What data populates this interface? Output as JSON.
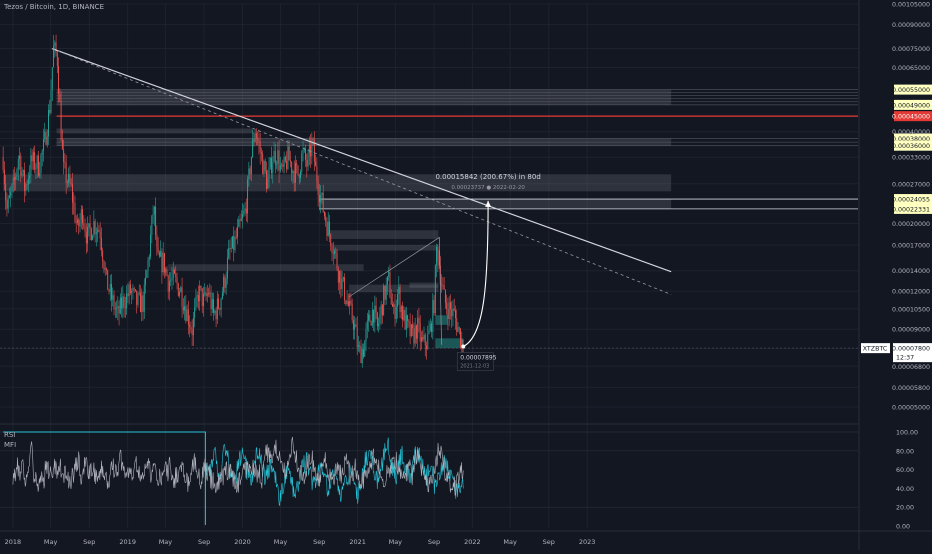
{
  "header": {
    "title": "Tezos / Bitcoin, 1D, BINANCE"
  },
  "colors": {
    "background": "#131722",
    "grid": "#1e222d",
    "up": "#26a69a",
    "down": "#ef5350",
    "rsi": "#b2b5be",
    "mfi": "#26c6da",
    "current_price_bg": "#ffffff",
    "highlight_bg": "#ffffc0",
    "red_level": "#e53935"
  },
  "chart_data": [
    {
      "type": "candlestick",
      "title": "Tezos / Bitcoin, 1D, BINANCE",
      "symbol": "XTZBTC",
      "yscale": "log",
      "ylim": [
        4e-05,
        0.00105
      ],
      "y_ticks": [
        "0.00105000",
        "0.00090000",
        "0.00075000",
        "0.00065000",
        "0.00055000",
        "0.00049000",
        "0.00045000",
        "0.00040000",
        "0.00038000",
        "0.00036000",
        "0.00033000",
        "0.00027000",
        "0.00024055",
        "0.00022331",
        "0.00020000",
        "0.00017000",
        "0.00014000",
        "0.00012000",
        "0.00010500",
        "0.00009000",
        "0.00007800",
        "0.00006800",
        "0.00005800",
        "0.00005000"
      ],
      "highlighted_ticks": [
        "0.00055000",
        "0.00049000",
        "0.00038000",
        "0.00036000",
        "0.00024055",
        "0.00022331"
      ],
      "red_tick": "0.00045000",
      "x_ticks": [
        "2018",
        "May",
        "Sep",
        "2019",
        "May",
        "Sep",
        "2020",
        "May",
        "Sep",
        "2021",
        "May",
        "Sep",
        "2022",
        "May",
        "Sep",
        "2023"
      ],
      "current_price": {
        "label": "XTZBTC",
        "value": "0.00007800",
        "countdown": "12:37"
      },
      "low_label": {
        "value": "0.00007895",
        "date": "2021-12-03"
      },
      "projection": {
        "text": "0.00015842 (200.67%) in 80d",
        "target": "0.00023737",
        "date": "2022-02-20"
      },
      "price_path": [
        [
          "2017-12-01",
          0.00033
        ],
        [
          "2017-12-12",
          0.00022
        ],
        [
          "2018-01-05",
          0.00027
        ],
        [
          "2018-01-20",
          0.00034
        ],
        [
          "2018-02-08",
          0.00026
        ],
        [
          "2018-03-01",
          0.00032
        ],
        [
          "2018-03-25",
          0.00031
        ],
        [
          "2018-04-10",
          0.00036
        ],
        [
          "2018-04-28",
          0.00048
        ],
        [
          "2018-05-10",
          0.00075
        ],
        [
          "2018-05-22",
          0.0007
        ],
        [
          "2018-06-10",
          0.0003
        ],
        [
          "2018-07-05",
          0.00026
        ],
        [
          "2018-07-25",
          0.00019
        ],
        [
          "2018-08-10",
          0.00022
        ],
        [
          "2018-08-25",
          0.00018
        ],
        [
          "2018-09-15",
          0.0002
        ],
        [
          "2018-10-05",
          0.00019
        ],
        [
          "2018-10-25",
          0.00013
        ],
        [
          "2018-11-15",
          0.00011
        ],
        [
          "2018-12-01",
          0.0001
        ],
        [
          "2018-12-15",
          0.00011
        ],
        [
          "2019-01-10",
          0.00012
        ],
        [
          "2019-01-30",
          0.00011
        ],
        [
          "2019-02-20",
          0.00011
        ],
        [
          "2019-03-10",
          0.00016
        ],
        [
          "2019-03-25",
          0.00023
        ],
        [
          "2019-04-05",
          0.00015
        ],
        [
          "2019-04-25",
          0.00015
        ],
        [
          "2019-05-10",
          0.00013
        ],
        [
          "2019-05-30",
          0.00013
        ],
        [
          "2019-06-20",
          0.00012
        ],
        [
          "2019-07-05",
          0.000105
        ],
        [
          "2019-07-25",
          9e-05
        ],
        [
          "2019-08-15",
          0.00012
        ],
        [
          "2019-09-01",
          0.00011
        ],
        [
          "2019-09-15",
          0.00012
        ],
        [
          "2019-10-01",
          0.0001
        ],
        [
          "2019-10-20",
          0.00011
        ],
        [
          "2019-11-05",
          0.00013
        ],
        [
          "2019-11-20",
          0.00016
        ],
        [
          "2019-12-05",
          0.00017
        ],
        [
          "2019-12-20",
          0.00019
        ],
        [
          "2020-01-10",
          0.00022
        ],
        [
          "2020-01-30",
          0.00034
        ],
        [
          "2020-02-10",
          0.00041
        ],
        [
          "2020-02-25",
          0.00035
        ],
        [
          "2020-03-10",
          0.0003
        ],
        [
          "2020-03-20",
          0.00027
        ],
        [
          "2020-04-05",
          0.00033
        ],
        [
          "2020-04-20",
          0.00034
        ],
        [
          "2020-05-05",
          0.00029
        ],
        [
          "2020-05-25",
          0.00033
        ],
        [
          "2020-06-10",
          0.0003
        ],
        [
          "2020-06-25",
          0.00029
        ],
        [
          "2020-07-10",
          0.00034
        ],
        [
          "2020-07-25",
          0.00031
        ],
        [
          "2020-08-10",
          0.00037
        ],
        [
          "2020-08-20",
          0.0003
        ],
        [
          "2020-09-01",
          0.00026
        ],
        [
          "2020-09-15",
          0.00022
        ],
        [
          "2020-10-01",
          0.00019
        ],
        [
          "2020-10-15",
          0.00017
        ],
        [
          "2020-11-01",
          0.00014
        ],
        [
          "2020-11-20",
          0.00012
        ],
        [
          "2020-12-05",
          0.000105
        ],
        [
          "2020-12-20",
          9.5e-05
        ],
        [
          "2021-01-05",
          7.5e-05
        ],
        [
          "2021-01-20",
          7.8e-05
        ],
        [
          "2021-02-05",
          9.5e-05
        ],
        [
          "2021-02-20",
          0.000105
        ],
        [
          "2021-03-05",
          9e-05
        ],
        [
          "2021-03-25",
          0.000115
        ],
        [
          "2021-04-10",
          0.00013
        ],
        [
          "2021-04-25",
          0.0001
        ],
        [
          "2021-05-10",
          0.00012
        ],
        [
          "2021-05-25",
          0.0001
        ],
        [
          "2021-06-10",
          9e-05
        ],
        [
          "2021-06-25",
          8.5e-05
        ],
        [
          "2021-07-10",
          9.2e-05
        ],
        [
          "2021-07-25",
          8e-05
        ],
        [
          "2021-08-10",
          8.2e-05
        ],
        [
          "2021-08-20",
          9e-05
        ],
        [
          "2021-09-01",
          0.00011
        ],
        [
          "2021-09-10",
          0.00017
        ],
        [
          "2021-09-20",
          0.00014
        ],
        [
          "2021-10-05",
          0.00011
        ],
        [
          "2021-10-20",
          0.000105
        ],
        [
          "2021-11-05",
          0.0001
        ],
        [
          "2021-11-20",
          8.8e-05
        ],
        [
          "2021-12-03",
          7.9e-05
        ]
      ],
      "drawings": {
        "trendline_solid": [
          [
            "2018-05-05",
            0.00075
          ],
          [
            "2023-09-25",
            0.000139
          ]
        ],
        "trendline_dashed": [
          [
            "2018-05-05",
            0.00075
          ],
          [
            "2023-09-25",
            0.000117
          ]
        ],
        "curve": [
          [
            "2021-12-03",
            7.9e-05
          ],
          [
            "2022-02-20",
            0.00023737
          ]
        ],
        "triangle": [
          [
            "2020-12-05",
            0.000115
          ],
          [
            "2021-09-18",
            0.00018
          ],
          [
            "2021-09-25",
            8e-05
          ]
        ],
        "zones_gray": [
          {
            "from": "2018-05-20",
            "to": "2023-09-25",
            "low": 0.00049,
            "high": 0.00055
          },
          {
            "from": "2018-05-20",
            "to": "2023-09-25",
            "low": 0.00036,
            "high": 0.00038
          },
          {
            "from": "2018-05-20",
            "to": "2020-02-05",
            "low": 0.000395,
            "high": 0.00041
          },
          {
            "from": "2017-12-01",
            "to": "2023-09-25",
            "low": 0.000255,
            "high": 0.00029
          },
          {
            "from": "2020-09-01",
            "to": "2023-09-25",
            "low": 0.000223,
            "high": 0.000241
          },
          {
            "from": "2020-10-01",
            "to": "2021-09-15",
            "low": 0.000178,
            "high": 0.00019
          },
          {
            "from": "2020-10-15",
            "to": "2021-09-15",
            "low": 0.000163,
            "high": 0.00017
          },
          {
            "from": "2019-05-10",
            "to": "2021-01-20",
            "low": 0.00014,
            "high": 0.000147
          },
          {
            "from": "2020-12-05",
            "to": "2021-09-15",
            "low": 0.000119,
            "high": 0.000126
          },
          {
            "from": "2021-06-15",
            "to": "2021-09-15",
            "low": 0.000123,
            "high": 0.000128
          }
        ],
        "zones_teal": [
          {
            "from": "2021-09-05",
            "to": "2021-10-15",
            "low": 9.3e-05,
            "high": 0.0001
          },
          {
            "from": "2021-09-05",
            "to": "2021-12-03",
            "low": 7.8e-05,
            "high": 8.4e-05
          }
        ],
        "red_level": 0.00045
      }
    },
    {
      "type": "line",
      "title": "RSI / MFI",
      "ylim": [
        0,
        100
      ],
      "y_ticks": [
        "100.00",
        "80.00",
        "60.00",
        "40.00",
        "20.00",
        "0.00"
      ],
      "series": [
        {
          "name": "RSI",
          "values": [
            55,
            50,
            62,
            58,
            66,
            48,
            60,
            70,
            82,
            55,
            50,
            45,
            52,
            47,
            63,
            58,
            60,
            54,
            66,
            52,
            70,
            48,
            55,
            60,
            44,
            52,
            58,
            64,
            70,
            50,
            55,
            72,
            60,
            58,
            65,
            53,
            48,
            58,
            62,
            55,
            50,
            46,
            58,
            62,
            55,
            66,
            72,
            54,
            60,
            55,
            58,
            50,
            62,
            66,
            55,
            48,
            56,
            62,
            70,
            46,
            60,
            54,
            52,
            48,
            60,
            64,
            58,
            66,
            45,
            50,
            56,
            62,
            58,
            55,
            50,
            44,
            52,
            70,
            64,
            56,
            48,
            58,
            62,
            55,
            52,
            46,
            48,
            42,
            50,
            55,
            52,
            58,
            62,
            55,
            48,
            40,
            45,
            52,
            56,
            62,
            60,
            58,
            66,
            60,
            55,
            58,
            50,
            64,
            80,
            75,
            70,
            84,
            88,
            78,
            70,
            60,
            58,
            66,
            72,
            84,
            76,
            70,
            60,
            55,
            50,
            62,
            70,
            76,
            64,
            58,
            50,
            54,
            62,
            70,
            60,
            55,
            45,
            52,
            60,
            58,
            54,
            66,
            70,
            56,
            50,
            60,
            62,
            55,
            42,
            48,
            52,
            56,
            66,
            70,
            75,
            66,
            58,
            46,
            50,
            55,
            60,
            62,
            66,
            72,
            60,
            56,
            48,
            50,
            58,
            60,
            52,
            70,
            78,
            74,
            60,
            52,
            44,
            46,
            52,
            58,
            66,
            82,
            78,
            70,
            58,
            54,
            48,
            40,
            42,
            46,
            52,
            58
          ]
        },
        {
          "name": "MFI",
          "values": [
            52,
            60,
            55,
            72,
            78,
            66,
            56,
            60,
            78,
            88,
            70,
            58,
            52,
            50,
            62,
            70,
            80,
            74,
            60,
            55,
            50,
            58,
            74,
            82,
            72,
            60,
            52,
            56,
            62,
            66,
            52,
            44,
            30,
            36,
            48,
            56,
            60,
            54,
            40,
            36,
            44,
            52,
            60,
            66,
            70,
            62,
            48,
            42,
            50,
            58,
            64,
            56,
            48,
            40,
            44,
            52,
            56,
            48,
            36,
            30,
            38,
            48,
            54,
            60,
            56,
            40,
            34,
            40,
            52,
            66,
            74,
            80,
            70,
            58,
            52,
            48,
            56,
            70,
            84,
            90,
            78,
            60,
            56,
            52,
            66,
            76,
            70,
            60,
            56,
            50,
            62,
            74,
            80,
            72,
            62,
            56,
            52,
            62,
            58,
            46,
            40,
            52,
            60,
            66,
            70,
            62,
            58,
            46,
            42,
            36,
            40,
            50
          ]
        }
      ],
      "rsi_zero_date": "2018-01-01",
      "rsi_start_date": "2017-12-01",
      "mfi_start_date": "2019-09-05",
      "end_date": "2021-12-03",
      "overbought_line": {
        "value": 100,
        "from": "2017-12-01",
        "to": "2019-09-05"
      }
    }
  ],
  "indicators": {
    "rsi_label": "RSI",
    "mfi_label": "MFI"
  }
}
